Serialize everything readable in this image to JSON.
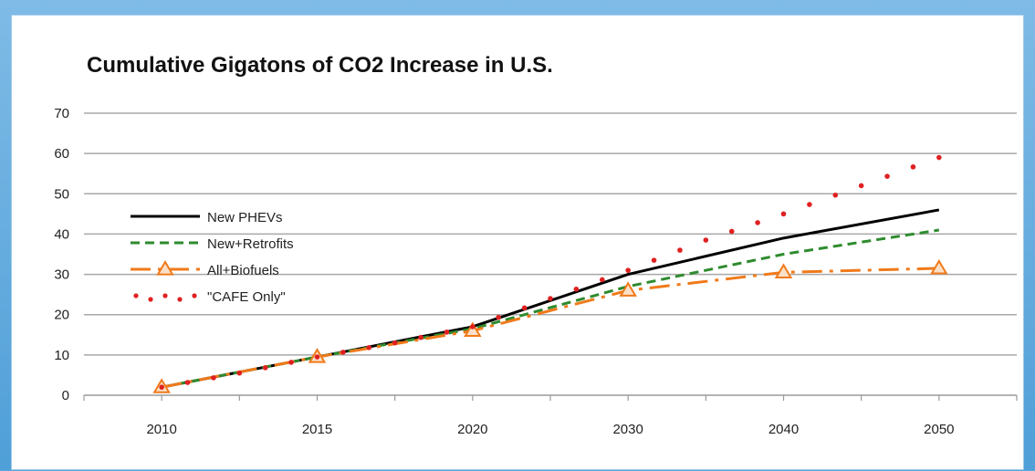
{
  "chart_data": {
    "type": "line",
    "title": "Cumulative Gigatons of CO2 Increase in U.S.",
    "xlabel": "",
    "ylabel": "",
    "ylim": [
      0,
      70
    ],
    "yticks": [
      0,
      10,
      20,
      30,
      40,
      50,
      60,
      70
    ],
    "categories": [
      "2010",
      "2015",
      "2020",
      "2030",
      "2040",
      "2050"
    ],
    "grid": true,
    "legend_position": "left-center",
    "series": [
      {
        "name": "New PHEVs",
        "color": "#000000",
        "style": "solid",
        "marker": "none",
        "points": [
          [
            0,
            2
          ],
          [
            1,
            9.5
          ],
          [
            2,
            17
          ],
          [
            3,
            30
          ],
          [
            4,
            39
          ],
          [
            5,
            46
          ]
        ]
      },
      {
        "name": "New+Retrofits",
        "color": "#2e8b2e",
        "style": "dashed",
        "marker": "none",
        "points": [
          [
            0,
            2
          ],
          [
            1,
            9.5
          ],
          [
            2,
            16.5
          ],
          [
            3,
            27
          ],
          [
            4,
            35
          ],
          [
            5,
            41
          ]
        ]
      },
      {
        "name": "All+Biofuels",
        "color": "#f07a1a",
        "style": "dash-dot",
        "marker": "triangle",
        "points": [
          [
            0,
            2
          ],
          [
            1,
            9.5
          ],
          [
            2,
            16
          ],
          [
            3,
            26
          ],
          [
            4,
            30.5
          ],
          [
            5,
            31.5
          ]
        ]
      },
      {
        "name": "\"CAFE Only\"",
        "color": "#e02020",
        "style": "dotted",
        "marker": "none",
        "points": [
          [
            0,
            2
          ],
          [
            0.5,
            5.5
          ],
          [
            1,
            9.5
          ],
          [
            1.5,
            13
          ],
          [
            2,
            17
          ],
          [
            2.5,
            24
          ],
          [
            3,
            31
          ],
          [
            3.5,
            38.5
          ],
          [
            4,
            45
          ],
          [
            4.5,
            52
          ],
          [
            5,
            59
          ]
        ]
      }
    ]
  }
}
